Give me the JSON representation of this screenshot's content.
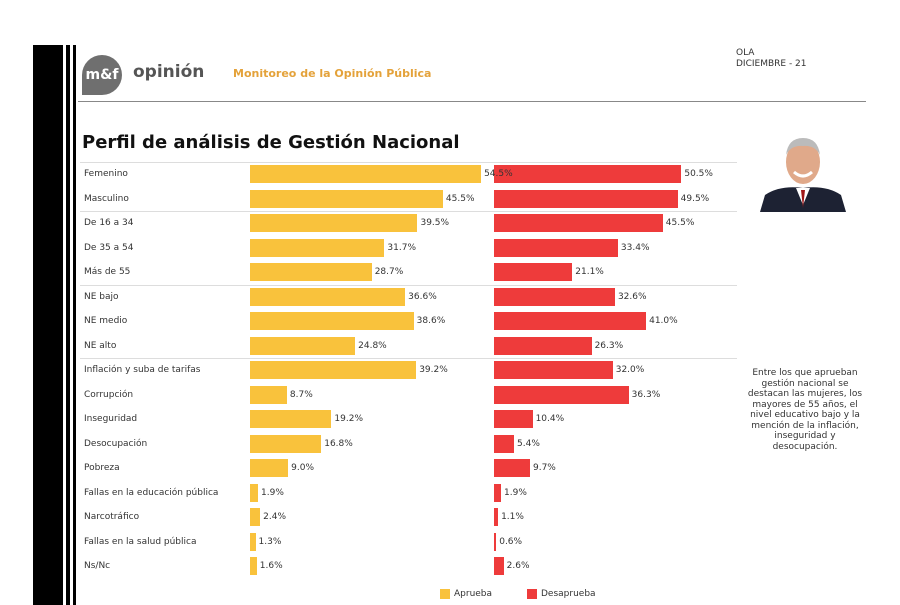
{
  "header": {
    "logo_text": "m&f",
    "brand": "opinión",
    "subtitle": "Monitoreo de la Opinión Pública",
    "ola": "OLA",
    "date": "DICIEMBRE - 21"
  },
  "note": "Entre los que aprueban gestión nacional se destacan las mujeres, los mayores de 55 años, el nivel educativo bajo y la mención de la inflación, inseguridad y desocupación.",
  "chart_data": {
    "type": "bar",
    "title": "Perfil de análisis de Gestión Nacional",
    "colors": {
      "Aprueba": "#f9c23c",
      "Desaprueba": "#ee3b3b"
    },
    "categories": [
      "Femenino",
      "Masculino",
      "De 16 a 34",
      "De 35 a 54",
      "Más de 55",
      "NE bajo",
      "NE medio",
      "NE alto",
      "Inflación y suba de tarifas",
      "Corrupción",
      "Inseguridad",
      "Desocupación",
      "Pobreza",
      "Fallas en la educación pública",
      "Narcotráfico",
      "Fallas en la salud pública",
      "Ns/Nc"
    ],
    "groups_end_after": [
      "Masculino",
      "Más de 55",
      "NE alto"
    ],
    "series": [
      {
        "name": "Aprueba",
        "values": [
          54.5,
          45.5,
          39.5,
          31.7,
          28.7,
          36.6,
          38.6,
          24.8,
          39.2,
          8.7,
          19.2,
          16.8,
          9.0,
          1.9,
          2.4,
          1.3,
          1.6
        ]
      },
      {
        "name": "Desaprueba",
        "values": [
          50.5,
          49.5,
          45.5,
          33.4,
          21.1,
          32.6,
          41.0,
          26.3,
          32.0,
          36.3,
          10.4,
          5.4,
          9.7,
          1.9,
          1.1,
          0.6,
          2.6
        ]
      }
    ],
    "legend_position": "bottom"
  }
}
